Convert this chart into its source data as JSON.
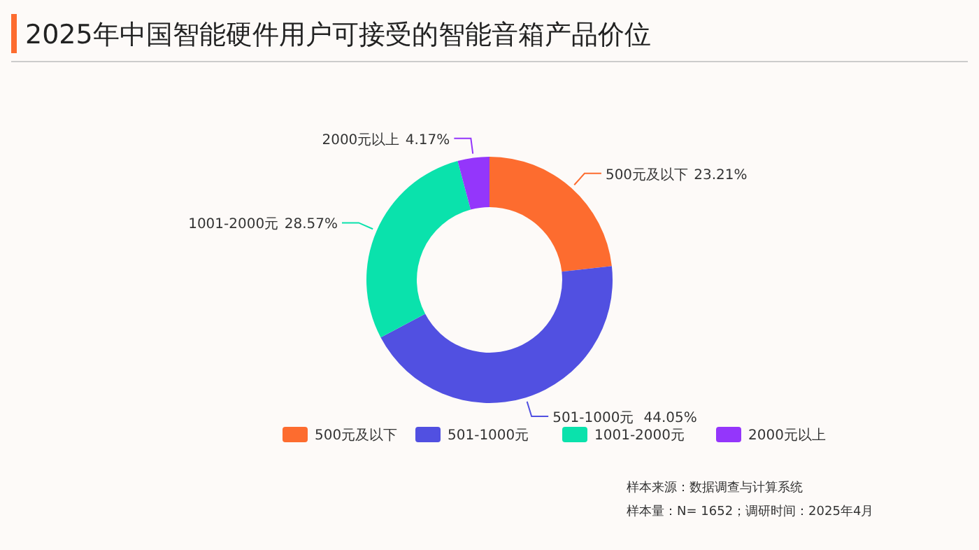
{
  "chart_data": {
    "type": "donut",
    "title": "2025年中国智能硬件用户可接受的智能音箱产品价位",
    "categories": [
      "500元及以下",
      "501-1000元",
      "1001-2000元",
      "2000元以上"
    ],
    "values": [
      23.21,
      44.05,
      28.57,
      4.17
    ],
    "colors": [
      "#fd6c2f",
      "#5150e1",
      "#0ae2ac",
      "#9436fb"
    ],
    "value_labels": [
      "23.21%",
      "44.05%",
      "28.57%",
      "4.17%"
    ],
    "legend": "bottom",
    "annotations": [
      "样本来源：数据调查与计算系统",
      "样本量：N= 1652；调研时间：2025年4月"
    ]
  }
}
